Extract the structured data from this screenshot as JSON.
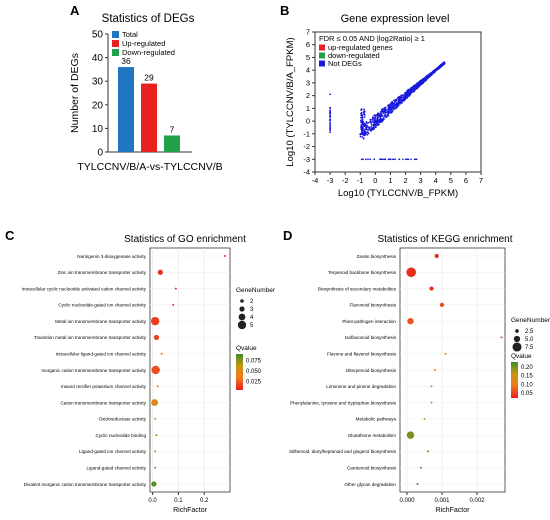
{
  "chart_data": [
    {
      "panel": "A",
      "type": "bar",
      "title": "Statistics of DEGs",
      "xlabel": "TYLCCNV/B/A-vs-TYLCCNV/B",
      "ylabel": "Number of DEGs",
      "ylim": [
        0,
        50
      ],
      "yticks": [
        0,
        10,
        20,
        30,
        40,
        50
      ],
      "categories": [
        "Total",
        "Up-regulated",
        "Down-regulated"
      ],
      "values": [
        36,
        29,
        7
      ],
      "value_labels": [
        "36",
        "29",
        "7"
      ],
      "colors": [
        "#1f77c2",
        "#e8201f",
        "#1fa24a"
      ],
      "legend": {
        "placement": "top-left",
        "entries": [
          "Total",
          "Up-regulated",
          "Down-regulated"
        ]
      },
      "grid": false
    },
    {
      "panel": "B",
      "type": "scatter",
      "title": "Gene expression level",
      "xlabel": "Log10 (TYLCCNV/B_FPKM)",
      "ylabel": "Log10 (TYLCCNV/B/A_FPKM)",
      "xlim": [
        -4,
        7
      ],
      "ylim": [
        -4,
        7
      ],
      "xticks": [
        -4,
        -3,
        -2,
        -1,
        0,
        1,
        2,
        3,
        4,
        5,
        6,
        7
      ],
      "yticks": [
        -4,
        -3,
        -2,
        -1,
        0,
        1,
        2,
        3,
        4,
        5,
        6,
        7
      ],
      "annotation": "FDR ≤ 0.05 AND |log2Ratio| ≥ 1",
      "legend": {
        "placement": "top-left",
        "entries": [
          {
            "name": "up-regulated genes",
            "color": "#e8201f"
          },
          {
            "name": "down-regulated",
            "color": "#1fa24a"
          },
          {
            "name": "Not DEGs",
            "color": "#1a1adc"
          }
        ]
      },
      "point_color": "#1a1adc"
    },
    {
      "panel": "C",
      "type": "scatter",
      "title": "Statistics of GO enrichment",
      "xlabel": "RichFactor",
      "xlim": [
        -0.01,
        0.3
      ],
      "xticks": [
        0.0,
        0.1,
        0.2
      ],
      "xticklabels": [
        "0.0",
        "0.1",
        "0.2"
      ],
      "terms": [
        "Naringenin 3-dioxygenase activity",
        "Zinc ion transmembrane transporter activity",
        "Intracellular cyclic nucleotide activated cation channel activity",
        "Cyclic nucleotide-gated ion channel activity",
        "Metal ion transmembrane transporter activity",
        "Transition metal ion transmembrane transporter activity",
        "Intracellular ligand-gated ion channel activity",
        "Inorganic cation transmembrane transporter activity",
        "Inward rectifier potassium channel activity",
        "Cation transmembrane transporter activity",
        "Oxidoreductase activity",
        "Cyclic nucleotide binding",
        "Ligand-gated ion channel activity",
        "Ligand-gated channel activity",
        "Divalent inorganic cation transmembrane transporter activity"
      ],
      "rich_factor": [
        0.28,
        0.03,
        0.09,
        0.08,
        0.01,
        0.015,
        0.035,
        0.012,
        0.02,
        0.008,
        0.01,
        0.015,
        0.01,
        0.01,
        0.005
      ],
      "gene_number": [
        1,
        3,
        1,
        1,
        5,
        3,
        1,
        5,
        1,
        4,
        1,
        1,
        1,
        1,
        3
      ],
      "qvalue": [
        0.01,
        0.01,
        0.01,
        0.01,
        0.015,
        0.015,
        0.03,
        0.02,
        0.035,
        0.05,
        0.06,
        0.07,
        0.07,
        0.075,
        0.085
      ],
      "legend_size": {
        "title": "GeneNumber",
        "values": [
          2,
          3,
          4,
          5
        ],
        "labels": [
          "2",
          "3",
          "4",
          "5"
        ]
      },
      "legend_color": {
        "title": "Qvalue",
        "ticks": [
          0.075,
          0.05,
          0.025
        ],
        "ticklabels": [
          "0.075",
          "0.050",
          "0.025"
        ],
        "range": [
          0.005,
          0.09
        ]
      }
    },
    {
      "panel": "D",
      "type": "scatter",
      "title": "Statistics of KEGG enrichment",
      "xlabel": "RichFactor",
      "xlim": [
        -0.0002,
        0.0028
      ],
      "xticks": [
        0.0,
        0.001,
        0.002
      ],
      "xticklabels": [
        "0.000",
        "0.001",
        "0.002"
      ],
      "terms": [
        "Zeatin biosynthesis",
        "Terpenoid backbone biosynthesis",
        "Biosynthesis of secondary metabolites",
        "Flavonoid biosynthesis",
        "Plant-pathogen interaction",
        "Isoflavonoid biosynthesis",
        "Flavone and flavonol biosynthesis",
        "Diterpenoid biosynthesis",
        "Limonene and pinene degradation",
        "Phenylalanine, tyrosine and tryptophan biosynthesis",
        "Metabolic pathways",
        "Glutathione metabolism",
        "Stilbenoid, diarylheptanoid and gingerol biosynthesis",
        "Carotenoid biosynthesis",
        "Other glycan degradation"
      ],
      "rich_factor": [
        0.00085,
        0.00012,
        0.0007,
        0.001,
        0.0001,
        0.0027,
        0.0011,
        0.0008,
        0.0007,
        0.0007,
        0.0005,
        0.0001,
        0.0006,
        0.0004,
        0.0003
      ],
      "gene_number": [
        3,
        8,
        3,
        3,
        5,
        1,
        1,
        1,
        1,
        1,
        1,
        6,
        1,
        1,
        1
      ],
      "qvalue": [
        0.03,
        0.03,
        0.03,
        0.05,
        0.06,
        0.06,
        0.1,
        0.12,
        0.13,
        0.14,
        0.15,
        0.2,
        0.2,
        0.21,
        0.22
      ],
      "legend_size": {
        "title": "GeneNumber",
        "values": [
          2.5,
          5.0,
          7.5
        ],
        "labels": [
          "2.5",
          "5.0",
          "7.5"
        ]
      },
      "legend_color": {
        "title": "Qvalue",
        "ticks": [
          0.2,
          0.15,
          0.1,
          0.05
        ],
        "ticklabels": [
          "0.20",
          "0.15",
          "0.10",
          "0.05"
        ],
        "range": [
          0.02,
          0.23
        ]
      }
    }
  ]
}
